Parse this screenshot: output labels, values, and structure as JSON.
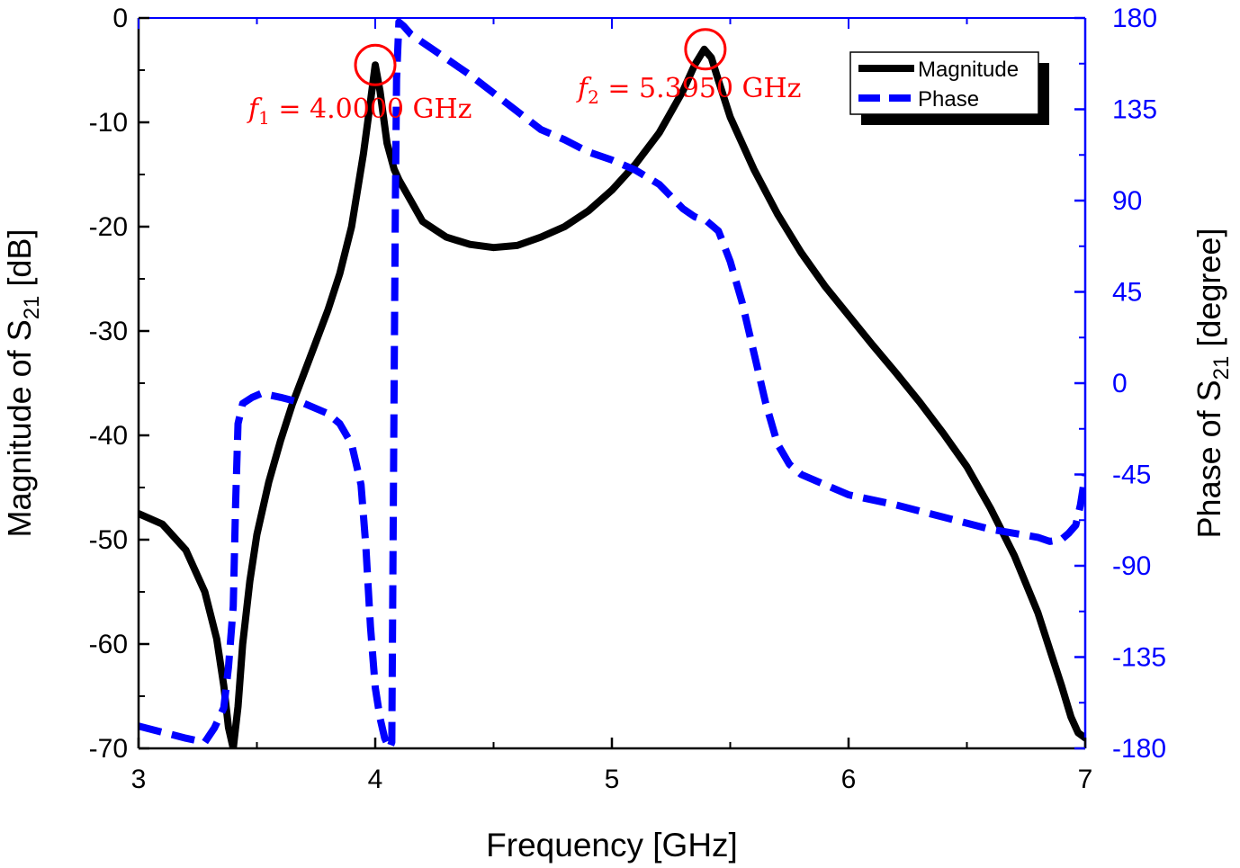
{
  "chart_data": {
    "type": "line",
    "title": "",
    "xlabel": "Frequency [GHz]",
    "ylabel_left_main": "Magnitude of S",
    "ylabel_left_sub": "21",
    "ylabel_left_unit": " [dB]",
    "ylabel_right_main": "Phase of S",
    "ylabel_right_sub": "21",
    "ylabel_right_unit": " [degree]",
    "xlim": [
      3,
      7
    ],
    "ylim_left": [
      -70,
      0
    ],
    "ylim_right": [
      -180,
      180
    ],
    "x_ticks": [
      3,
      4,
      5,
      6,
      7
    ],
    "x_tick_labels": [
      "3",
      "4",
      "5",
      "6",
      "7"
    ],
    "y_left_ticks": [
      0,
      -10,
      -20,
      -30,
      -40,
      -50,
      -60,
      -70
    ],
    "y_left_tick_labels": [
      "0",
      "-10",
      "-20",
      "-30",
      "-40",
      "-50",
      "-60",
      "-70"
    ],
    "y_right_ticks": [
      180,
      135,
      90,
      45,
      0,
      -45,
      -90,
      -135,
      -180
    ],
    "y_right_tick_labels": [
      "180",
      "135",
      "90",
      "45",
      "0",
      "-45",
      "-90",
      "-135",
      "-180"
    ],
    "legend": {
      "position": "top-right",
      "entries": [
        "Magnitude",
        "Phase"
      ]
    },
    "colors": {
      "magnitude": "#000000",
      "phase": "#0000ff",
      "right_axis": "#0000ff",
      "markers": "#ff0000",
      "annotation": "#ff0000"
    },
    "series": [
      {
        "name": "Magnitude",
        "axis": "left",
        "style": "solid",
        "x": [
          3.0,
          3.1,
          3.2,
          3.28,
          3.33,
          3.36,
          3.38,
          3.4,
          3.42,
          3.44,
          3.47,
          3.5,
          3.55,
          3.6,
          3.65,
          3.7,
          3.75,
          3.8,
          3.85,
          3.9,
          3.95,
          3.98,
          4.0,
          4.02,
          4.05,
          4.08,
          4.1,
          4.15,
          4.2,
          4.3,
          4.4,
          4.5,
          4.6,
          4.7,
          4.8,
          4.9,
          5.0,
          5.1,
          5.2,
          5.25,
          5.3,
          5.35,
          5.39,
          5.42,
          5.45,
          5.5,
          5.6,
          5.7,
          5.8,
          5.9,
          6.0,
          6.1,
          6.2,
          6.3,
          6.4,
          6.5,
          6.6,
          6.7,
          6.8,
          6.85,
          6.9,
          6.94,
          6.97,
          7.0
        ],
        "values": [
          -47.5,
          -48.5,
          -51.0,
          -55.0,
          -59.5,
          -64.0,
          -68.0,
          -70.0,
          -66.0,
          -60.0,
          -54.0,
          -49.5,
          -44.5,
          -40.5,
          -37.0,
          -34.0,
          -31.0,
          -28.0,
          -24.5,
          -20.0,
          -13.0,
          -8.0,
          -4.5,
          -7.0,
          -12.0,
          -14.5,
          -15.5,
          -17.5,
          -19.5,
          -21.0,
          -21.7,
          -22.0,
          -21.8,
          -21.0,
          -20.0,
          -18.5,
          -16.5,
          -14.0,
          -11.0,
          -9.0,
          -7.0,
          -4.5,
          -3.0,
          -3.8,
          -6.0,
          -9.5,
          -14.5,
          -18.8,
          -22.5,
          -25.7,
          -28.5,
          -31.3,
          -34.0,
          -36.8,
          -39.8,
          -43.0,
          -47.0,
          -51.5,
          -57.0,
          -60.5,
          -64.0,
          -67.0,
          -68.5,
          -69.0
        ]
      },
      {
        "name": "Phase",
        "axis": "right",
        "style": "dashed",
        "x": [
          3.0,
          3.1,
          3.2,
          3.28,
          3.32,
          3.36,
          3.38,
          3.4,
          3.41,
          3.42,
          3.44,
          3.48,
          3.52,
          3.6,
          3.7,
          3.8,
          3.85,
          3.9,
          3.94,
          3.96,
          3.98,
          4.0,
          4.02,
          4.04,
          4.06,
          4.07,
          4.08,
          4.085,
          4.09,
          4.1,
          4.12,
          4.15,
          4.2,
          4.3,
          4.4,
          4.5,
          4.6,
          4.7,
          4.8,
          4.9,
          5.0,
          5.1,
          5.2,
          5.25,
          5.3,
          5.35,
          5.4,
          5.45,
          5.5,
          5.55,
          5.6,
          5.65,
          5.7,
          5.75,
          5.8,
          5.9,
          6.0,
          6.2,
          6.4,
          6.6,
          6.8,
          6.85,
          6.9,
          6.93,
          6.96,
          6.98,
          7.0
        ],
        "values": [
          -169,
          -172,
          -175,
          -177,
          -170,
          -160,
          -140,
          -110,
          -60,
          -20,
          -10,
          -7,
          -5,
          -7,
          -10,
          -15,
          -20,
          -30,
          -50,
          -80,
          -120,
          -150,
          -165,
          -175,
          -180,
          -177,
          0,
          90,
          150,
          178,
          176,
          172,
          168,
          160,
          152,
          143,
          134,
          125,
          120,
          114,
          110,
          105,
          98,
          92,
          86,
          82,
          80,
          75,
          60,
          40,
          15,
          -10,
          -30,
          -40,
          -45,
          -50,
          -55,
          -60,
          -66,
          -72,
          -76,
          -78,
          -77,
          -74,
          -70,
          -60,
          -45
        ]
      }
    ],
    "markers": [
      {
        "x": 4.0,
        "y": -4.5,
        "label": "f_1 = 4.0000 GHz"
      },
      {
        "x": 5.395,
        "y": -3.0,
        "label": "f_2 = 5.3950 GHz"
      }
    ],
    "annotations": [
      {
        "text_prefix": "f",
        "subscript": "1",
        "text_suffix": " = 4.0000 GHz"
      },
      {
        "text_prefix": "f",
        "subscript": "2",
        "text_suffix": " = 5.3950 GHz"
      }
    ]
  }
}
